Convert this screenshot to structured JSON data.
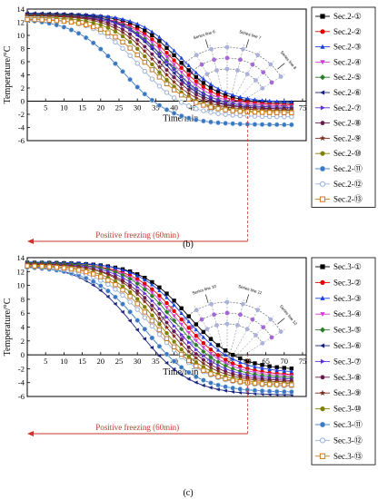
{
  "colors": {
    "axis": "#000000",
    "annotation": "#c0392b",
    "inset_ring": "#6b6b6b"
  },
  "chart_data": [
    {
      "type": "line",
      "panel_label": "(b)",
      "xlabel": "Time/min",
      "ylabel": "Temperature/°C",
      "xlim": [
        0,
        76
      ],
      "ylim": [
        -6,
        14
      ],
      "xticks": [
        "5",
        "10",
        "15",
        "20",
        "25",
        "30",
        "35",
        "40",
        "45",
        "50",
        "55",
        "60",
        "65",
        "70",
        "75"
      ],
      "yticks": [
        "-6",
        "-4",
        "-2",
        "0",
        "2",
        "4",
        "6",
        "8",
        "10",
        "12",
        "14"
      ],
      "grid": false,
      "legend_position": "right",
      "annotation": "Positive freezing (60min)",
      "annotation_range": [
        0,
        60
      ],
      "inset_labels": [
        "Series line 5",
        "Series line 6",
        "Series line 7",
        "Series line 8"
      ],
      "series": [
        {
          "name": "Sec.2-①",
          "color": "#000000",
          "marker": "square",
          "y0": 13.2,
          "yend": -0.4,
          "mid": 41,
          "k": 0.17
        },
        {
          "name": "Sec.2-②",
          "color": "#e00000",
          "marker": "circle",
          "y0": 13.0,
          "yend": -0.6,
          "mid": 40,
          "k": 0.17
        },
        {
          "name": "Sec.2-③",
          "color": "#1a3fe0",
          "marker": "triangle-up",
          "y0": 13.3,
          "yend": -0.2,
          "mid": 42,
          "k": 0.17
        },
        {
          "name": "Sec.2-④",
          "color": "#d23cd2",
          "marker": "triangle-down",
          "y0": 13.1,
          "yend": -0.8,
          "mid": 39,
          "k": 0.17
        },
        {
          "name": "Sec.2-⑤",
          "color": "#2e7d2e",
          "marker": "diamond",
          "y0": 13.2,
          "yend": -1.0,
          "mid": 38,
          "k": 0.17
        },
        {
          "name": "Sec.2-⑥",
          "color": "#1a237e",
          "marker": "triangle-left",
          "y0": 13.4,
          "yend": -1.2,
          "mid": 37,
          "k": 0.17
        },
        {
          "name": "Sec.2-⑦",
          "color": "#5b2fd6",
          "marker": "triangle-right",
          "y0": 13.0,
          "yend": -1.0,
          "mid": 38,
          "k": 0.17
        },
        {
          "name": "Sec.2-⑧",
          "color": "#6a1b4d",
          "marker": "hexagon",
          "y0": 13.1,
          "yend": -1.2,
          "mid": 36,
          "k": 0.17
        },
        {
          "name": "Sec.2-⑨",
          "color": "#7b2d1f",
          "marker": "star",
          "y0": 13.0,
          "yend": -1.4,
          "mid": 35,
          "k": 0.17
        },
        {
          "name": "Sec.2-⑩",
          "color": "#808000",
          "marker": "circle",
          "y0": 12.8,
          "yend": -1.6,
          "mid": 34,
          "k": 0.17
        },
        {
          "name": "Sec.2-⑪",
          "color": "#3a78c0",
          "marker": "sphere",
          "y0": 12.6,
          "yend": -3.6,
          "mid": 26,
          "k": 0.15
        },
        {
          "name": "Sec.2-⑫",
          "color": "#9ab0d8",
          "marker": "circle-open",
          "y0": 12.7,
          "yend": -2.4,
          "mid": 31,
          "k": 0.16
        },
        {
          "name": "Sec.2-⑬",
          "color": "#c8781e",
          "marker": "square-half",
          "y0": 12.5,
          "yend": -1.8,
          "mid": 33,
          "k": 0.16
        }
      ]
    },
    {
      "type": "line",
      "panel_label": "(c)",
      "xlabel": "Time/min",
      "ylabel": "Temperature/°C",
      "xlim": [
        0,
        76
      ],
      "ylim": [
        -6,
        14
      ],
      "xticks": [
        "5",
        "10",
        "15",
        "20",
        "25",
        "30",
        "35",
        "40",
        "45",
        "50",
        "55",
        "60",
        "65",
        "70",
        "75"
      ],
      "yticks": [
        "-6",
        "-4",
        "-2",
        "0",
        "2",
        "4",
        "6",
        "8",
        "10",
        "12",
        "14"
      ],
      "grid": false,
      "legend_position": "right",
      "annotation": "Positive freezing (60min)",
      "annotation_range": [
        0,
        60
      ],
      "inset_labels": [
        "Series line 9",
        "Series line 10",
        "Series line 11",
        "Series line 12"
      ],
      "series": [
        {
          "name": "Sec.3-①",
          "color": "#000000",
          "marker": "square",
          "y0": 13.3,
          "yend": -2.2,
          "mid": 44,
          "k": 0.15
        },
        {
          "name": "Sec.3-②",
          "color": "#e00000",
          "marker": "circle",
          "y0": 13.2,
          "yend": -3.0,
          "mid": 42,
          "k": 0.15
        },
        {
          "name": "Sec.3-③",
          "color": "#1a3fe0",
          "marker": "triangle-up",
          "y0": 13.4,
          "yend": -2.6,
          "mid": 43,
          "k": 0.15
        },
        {
          "name": "Sec.3-④",
          "color": "#d23cd2",
          "marker": "triangle-down",
          "y0": 13.2,
          "yend": -3.2,
          "mid": 41,
          "k": 0.15
        },
        {
          "name": "Sec.3-⑤",
          "color": "#2e7d2e",
          "marker": "diamond",
          "y0": 13.3,
          "yend": -3.4,
          "mid": 40,
          "k": 0.15
        },
        {
          "name": "Sec.3-⑥",
          "color": "#1a237e",
          "marker": "triangle-left",
          "y0": 13.0,
          "yend": -5.8,
          "mid": 30,
          "k": 0.14
        },
        {
          "name": "Sec.3-⑦",
          "color": "#5b2fd6",
          "marker": "triangle-right",
          "y0": 13.2,
          "yend": -3.6,
          "mid": 39,
          "k": 0.15
        },
        {
          "name": "Sec.3-⑧",
          "color": "#6a1b4d",
          "marker": "hexagon",
          "y0": 13.1,
          "yend": -3.8,
          "mid": 38,
          "k": 0.15
        },
        {
          "name": "Sec.3-⑨",
          "color": "#7b2d1f",
          "marker": "star",
          "y0": 13.2,
          "yend": -4.0,
          "mid": 37,
          "k": 0.15
        },
        {
          "name": "Sec.3-⑩",
          "color": "#808000",
          "marker": "circle",
          "y0": 13.0,
          "yend": -4.2,
          "mid": 36,
          "k": 0.15
        },
        {
          "name": "Sec.3-⑪",
          "color": "#3a78c0",
          "marker": "sphere",
          "y0": 12.8,
          "yend": -5.4,
          "mid": 32,
          "k": 0.14
        },
        {
          "name": "Sec.3-⑫",
          "color": "#9ab0d8",
          "marker": "circle-open",
          "y0": 12.9,
          "yend": -4.6,
          "mid": 34,
          "k": 0.14
        },
        {
          "name": "Sec.3-⑬",
          "color": "#c8781e",
          "marker": "square-half",
          "y0": 12.9,
          "yend": -4.4,
          "mid": 35,
          "k": 0.15
        }
      ]
    }
  ]
}
